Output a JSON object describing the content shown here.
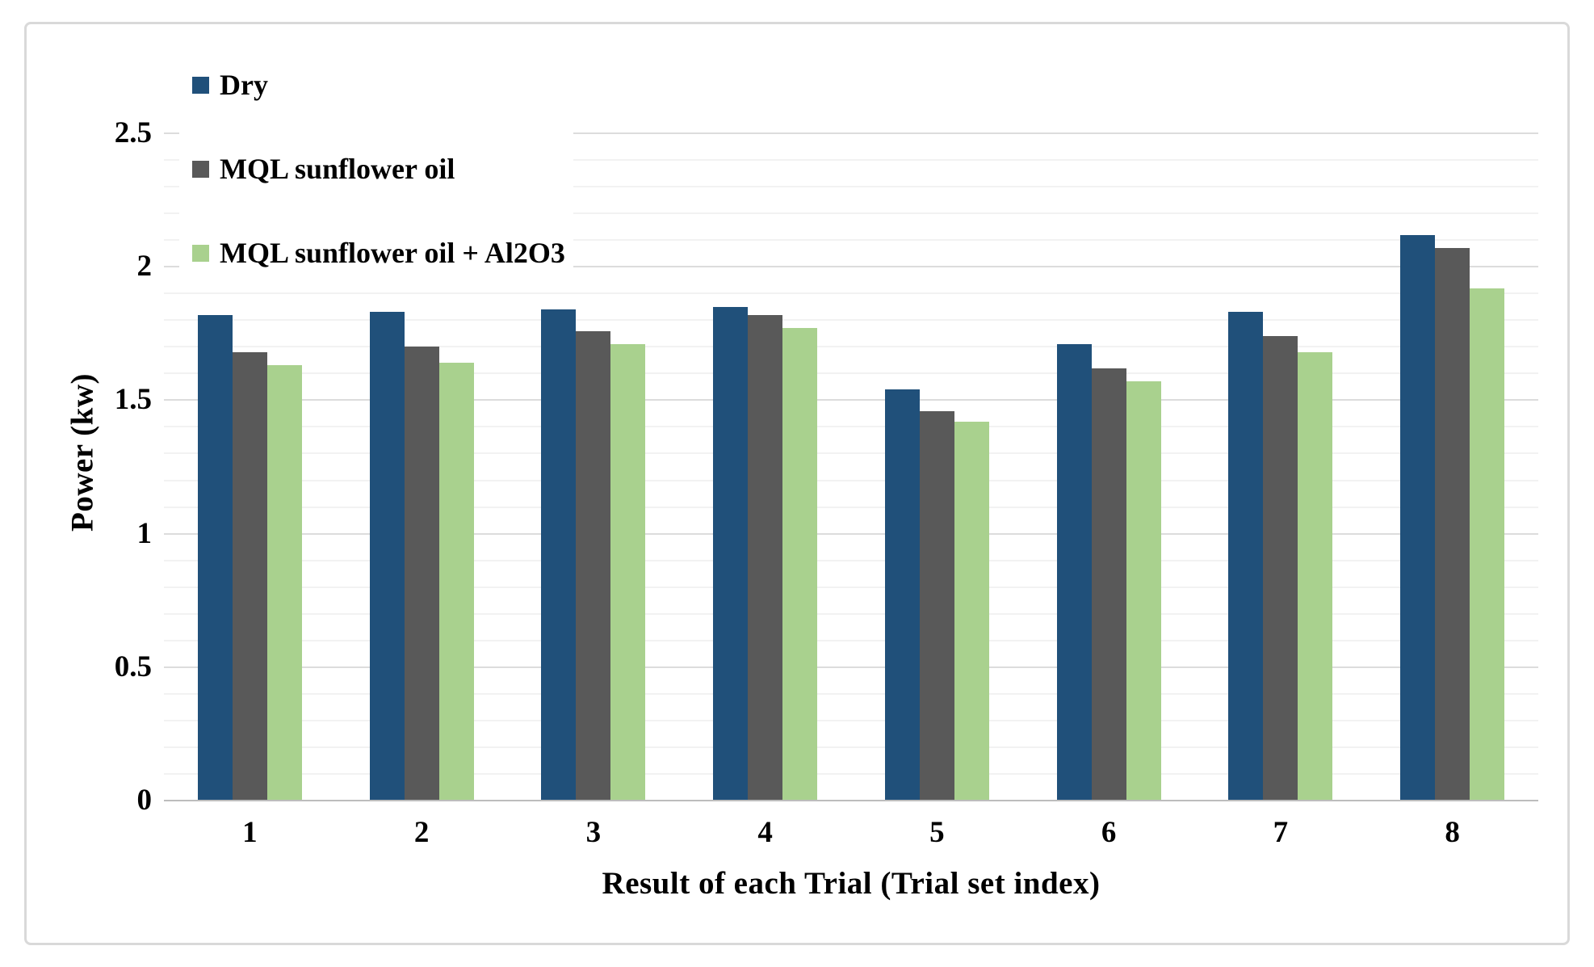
{
  "chart_data": {
    "type": "bar",
    "title": "",
    "xlabel": "Result of each Trial (Trial set index)",
    "ylabel": "Power (kw)",
    "categories": [
      "1",
      "2",
      "3",
      "4",
      "5",
      "6",
      "7",
      "8"
    ],
    "series": [
      {
        "name": "Dry",
        "color": "#20507A",
        "values": [
          1.82,
          1.83,
          1.84,
          1.85,
          1.54,
          1.71,
          1.83,
          2.12
        ]
      },
      {
        "name": "MQL sunflower oil",
        "color": "#595959",
        "values": [
          1.68,
          1.7,
          1.76,
          1.82,
          1.46,
          1.62,
          1.74,
          2.07
        ]
      },
      {
        "name": "MQL sunflower oil + Al2O3",
        "color": "#A9D18E",
        "values": [
          1.63,
          1.64,
          1.71,
          1.77,
          1.42,
          1.57,
          1.68,
          1.92
        ]
      }
    ],
    "ylim": [
      0,
      2.5
    ],
    "yticks": [
      0,
      0.5,
      1,
      1.5,
      2,
      2.5
    ],
    "ytick_labels": [
      "0",
      "0.5",
      "1",
      "1.5",
      "2",
      "2.5"
    ],
    "minor_grid_step": 0.1,
    "major_grid_step": 0.5,
    "grid": true,
    "legend_position": "top-left-inside",
    "colors": {
      "minor_grid": "#f2f2f2",
      "major_grid": "#dcdcdc",
      "axis_line": "#bdbdbd",
      "frame_border": "#d9d9d9",
      "text": "#000000"
    }
  }
}
